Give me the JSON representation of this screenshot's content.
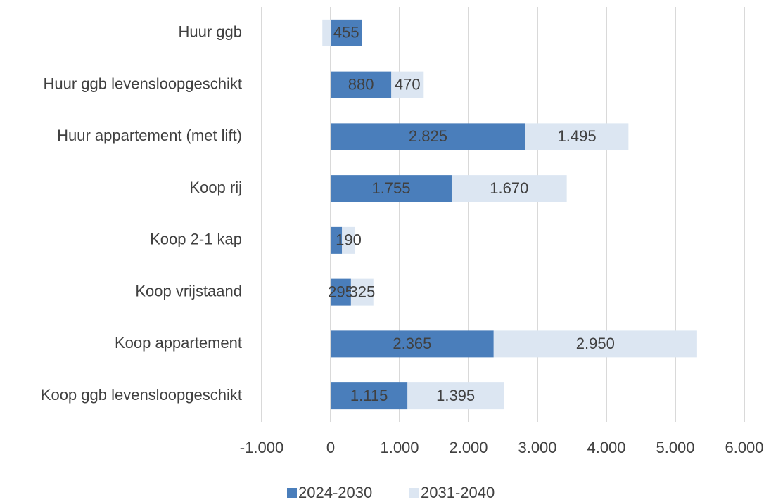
{
  "chart_data": {
    "type": "bar",
    "orientation": "horizontal",
    "stacked": true,
    "categories": [
      "Huur ggb",
      "Huur ggb levensloopgeschikt",
      "Huur appartement (met lift)",
      "Koop rij",
      "Koop 2-1 kap",
      "Koop vrijstaand",
      "Koop appartement",
      "Koop ggb levensloopgeschikt"
    ],
    "series": [
      {
        "name": "2024-2030",
        "color": "#4a7ebb",
        "values": [
          455,
          880,
          2825,
          1755,
          165,
          295,
          2365,
          1115
        ],
        "value_labels": [
          "455",
          "880",
          "2.825",
          "1.755",
          null,
          "295",
          "2.365",
          "1.115"
        ]
      },
      {
        "name": "2031-2040",
        "color": "#dce6f2",
        "values": [
          -120,
          470,
          1495,
          1670,
          190,
          325,
          2950,
          1395
        ],
        "value_labels": [
          null,
          "470",
          "1.495",
          "1.670",
          "190",
          "325",
          "2.950",
          "1.395"
        ]
      }
    ],
    "xlim": [
      -1000,
      6000
    ],
    "xticks": [
      {
        "value": -1000,
        "label": "-1.000"
      },
      0,
      {
        "value": 1000,
        "label": "1.000"
      },
      {
        "value": 2000,
        "label": "2.000"
      },
      {
        "value": 3000,
        "label": "3.000"
      },
      {
        "value": 4000,
        "label": "4.000"
      },
      {
        "value": 5000,
        "label": "5.000"
      },
      {
        "value": 6000,
        "label": "6.000"
      }
    ],
    "grid": true,
    "legend": "bottom"
  }
}
